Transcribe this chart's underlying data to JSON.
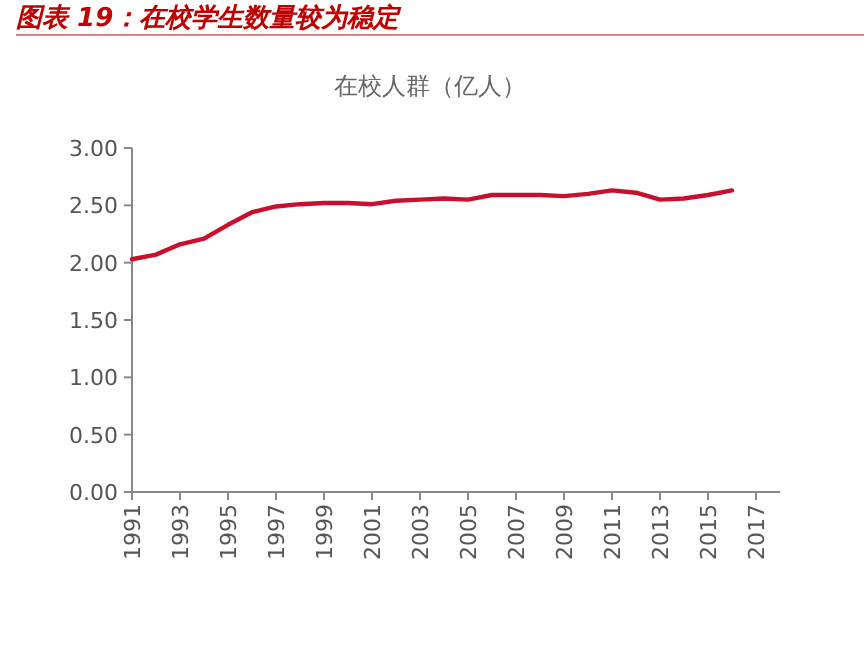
{
  "chart_data": {
    "type": "line",
    "title": "图表 19：在校学生数量较为稳定",
    "subtitle": "在校人群（亿人）",
    "x": [
      1991,
      1992,
      1993,
      1994,
      1995,
      1996,
      1997,
      1998,
      1999,
      2000,
      2001,
      2002,
      2003,
      2004,
      2005,
      2006,
      2007,
      2008,
      2009,
      2010,
      2011,
      2012,
      2013,
      2014,
      2015,
      2016
    ],
    "series": [
      {
        "color": "#c8102e",
        "values": [
          2.03,
          2.07,
          2.16,
          2.21,
          2.33,
          2.44,
          2.49,
          2.51,
          2.52,
          2.52,
          2.51,
          2.54,
          2.55,
          2.56,
          2.55,
          2.59,
          2.59,
          2.59,
          2.58,
          2.6,
          2.63,
          2.61,
          2.55,
          2.56,
          2.59,
          2.63
        ]
      }
    ],
    "xlim": [
      1991,
      2018
    ],
    "xticks": [
      1991,
      1993,
      1995,
      1997,
      1999,
      2001,
      2003,
      2005,
      2007,
      2009,
      2011,
      2013,
      2015,
      2017
    ],
    "ylim": [
      0,
      3
    ],
    "yticks": [
      {
        "value": 0,
        "label": "0.00"
      },
      {
        "value": 0.5,
        "label": "0.50"
      },
      {
        "value": 1,
        "label": "1.00"
      },
      {
        "value": 1.5,
        "label": "1.50"
      },
      {
        "value": 2,
        "label": "2.00"
      },
      {
        "value": 2.5,
        "label": "2.50"
      },
      {
        "value": 3,
        "label": "3.00"
      }
    ],
    "grid": false,
    "marker": "none",
    "line_style": "solid"
  }
}
